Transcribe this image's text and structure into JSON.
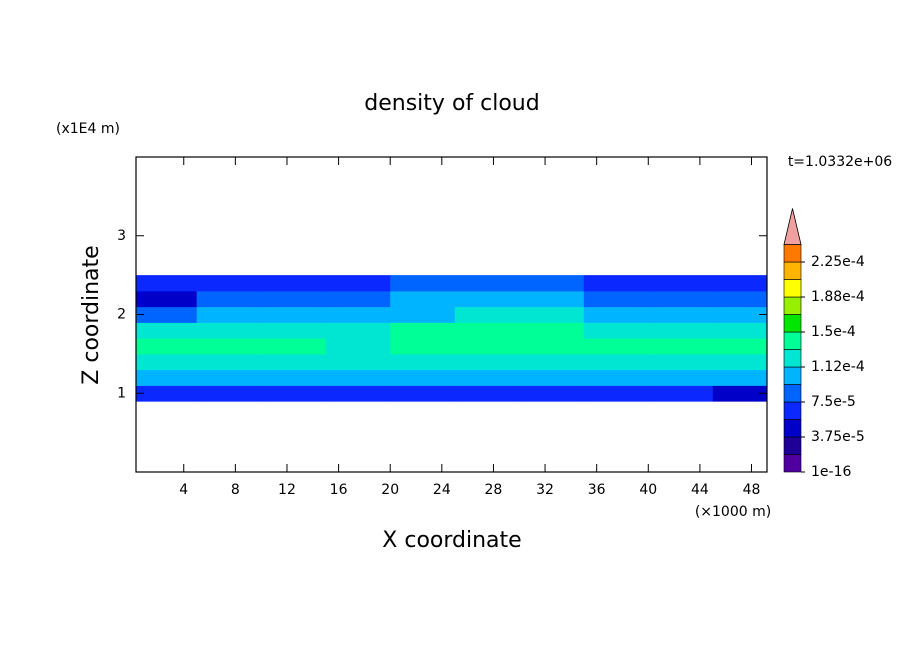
{
  "chart_data": {
    "type": "contour",
    "title": "density of cloud",
    "xlabel": "X coordinate",
    "ylabel": "Z coordinate",
    "xunit": "(×1000 m)",
    "yunit": "(x1E4 m)",
    "annotation": "t=1.0332e+06",
    "xlim": [
      0.3,
      49.2
    ],
    "ylim": [
      0,
      4
    ],
    "xticks": [
      4,
      8,
      12,
      16,
      20,
      24,
      28,
      32,
      36,
      40,
      44,
      48
    ],
    "yticks": [
      1,
      2,
      3
    ],
    "field": {
      "x": [
        0.3,
        5,
        10,
        15,
        20,
        25,
        30,
        35,
        40,
        45,
        49.2
      ],
      "y": [
        0.9,
        1.1,
        1.3,
        1.5,
        1.7,
        1.9,
        2.1,
        2.3,
        2.5
      ],
      "z": [
        [
          6e-05,
          7e-05,
          7e-05,
          7e-05,
          7e-05,
          7e-05,
          7e-05,
          7e-05,
          7e-05,
          5e-05
        ],
        [
          0.0001,
          0.0001,
          0.0001,
          0.0001,
          0.0001,
          0.0001,
          0.0001,
          0.0001,
          0.0001,
          0.0001
        ],
        [
          0.00012,
          0.00012,
          0.00012,
          0.00012,
          0.00012,
          0.00013,
          0.00013,
          0.00012,
          0.00012,
          0.00012
        ],
        [
          0.00014,
          0.00014,
          0.00014,
          0.00013,
          0.00014,
          0.00014,
          0.00014,
          0.00014,
          0.00014,
          0.00014
        ],
        [
          0.00013,
          0.00013,
          0.00013,
          0.00012,
          0.00014,
          0.00014,
          0.00014,
          0.00013,
          0.00012,
          0.00013
        ],
        [
          8e-05,
          0.00011,
          0.00011,
          0.00011,
          0.00011,
          0.00012,
          0.00012,
          0.00011,
          0.0001,
          0.0001
        ],
        [
          5e-05,
          9e-05,
          8e-05,
          9e-05,
          0.0001,
          0.0001,
          0.0001,
          8e-05,
          9e-05,
          8e-05
        ],
        [
          6e-05,
          7e-05,
          6e-05,
          7e-05,
          8e-05,
          8e-05,
          8e-05,
          7e-05,
          7e-05,
          7e-05
        ]
      ]
    },
    "colorbar": {
      "levels": [
        1e-16,
        1.875e-05,
        3.75e-05,
        5.625e-05,
        7.5e-05,
        9.375e-05,
        0.0001125,
        0.00013125,
        0.00015,
        0.00016875,
        0.0001875,
        0.00020625,
        0.000225,
        0.00024375
      ],
      "colors": [
        "#5000a0",
        "#1e0096",
        "#0000c8",
        "#0a28ff",
        "#0064ff",
        "#00b4ff",
        "#00e6d2",
        "#00ff96",
        "#00e600",
        "#96f000",
        "#ffff00",
        "#ffb400",
        "#ff7800"
      ],
      "extend_color": "#f0a0a0",
      "ticks": [
        {
          "value": 1e-16,
          "label": "1e-16"
        },
        {
          "value": 3.75e-05,
          "label": "3.75e-5"
        },
        {
          "value": 7.5e-05,
          "label": "7.5e-5"
        },
        {
          "value": 0.0001125,
          "label": "1.12e-4"
        },
        {
          "value": 0.00015,
          "label": "1.5e-4"
        },
        {
          "value": 0.0001875,
          "label": "1.88e-4"
        },
        {
          "value": 0.000225,
          "label": "2.25e-4"
        }
      ]
    }
  }
}
